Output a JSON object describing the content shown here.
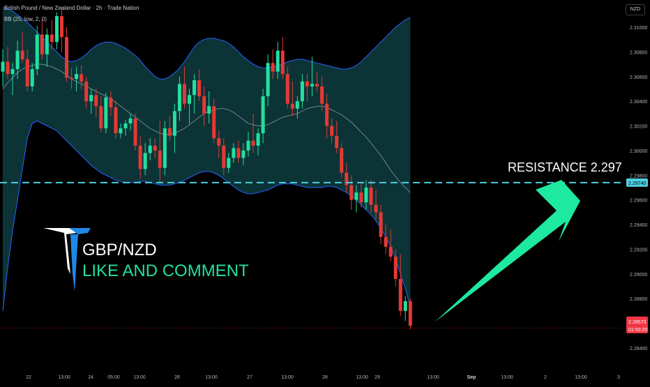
{
  "header": {
    "title": "British Pound / New Zealand Dollar · 2h · Trade Nation",
    "indicator": "BB (25, low, 2, 0)",
    "currency": "NZD"
  },
  "annotations": {
    "resistance_text": "RESISTANCE  2.297",
    "pair": "GBP/NZD",
    "cta": "LIKE AND COMMENT"
  },
  "price_tags": {
    "resistance": "2.29740",
    "last": "2.28573",
    "countdown": "01:50:20"
  },
  "colors": {
    "bull": "#26a69a",
    "bull_bright": "#22e0a0",
    "bear": "#e53935",
    "band_fill": "#0e3d40",
    "band_line": "#2962ff",
    "resistance_line": "#4dd0e1",
    "arrow": "#1de9a0",
    "logo": "#1e88e5",
    "price_line": "#b71c1c"
  },
  "chart_data": {
    "type": "candlestick",
    "symbol": "GBP/NZD",
    "timeframe": "2h",
    "indicator": "BB (25, low, 2, 0)",
    "y_axis": {
      "ticks": [
        "2.31000",
        "2.30800",
        "2.30600",
        "2.30400",
        "2.30200",
        "2.30000",
        "2.29800",
        "2.29600",
        "2.29400",
        "2.29200",
        "2.29000",
        "2.28800",
        "2.28600",
        "2.28400"
      ],
      "range": [
        2.2833,
        2.3118
      ]
    },
    "x_axis": {
      "ticks": [
        "22",
        "13:00",
        "24",
        "05:00",
        "13:00",
        "26",
        "13:00",
        "27",
        "13:00",
        "28",
        "13:00",
        "29",
        "13:00",
        "Sep",
        "13:00",
        "2",
        "13:00",
        "3"
      ]
    },
    "resistance": 2.2974,
    "last_price": 2.28573,
    "candles": [
      {
        "o": 2.3064,
        "h": 2.3082,
        "l": 2.3052,
        "c": 2.3072
      },
      {
        "o": 2.3072,
        "h": 2.3084,
        "l": 2.3058,
        "c": 2.3062
      },
      {
        "o": 2.3062,
        "h": 2.3071,
        "l": 2.3045,
        "c": 2.3066
      },
      {
        "o": 2.3066,
        "h": 2.3089,
        "l": 2.3058,
        "c": 2.3081
      },
      {
        "o": 2.3081,
        "h": 2.3096,
        "l": 2.3071,
        "c": 2.3074
      },
      {
        "o": 2.3074,
        "h": 2.3082,
        "l": 2.3048,
        "c": 2.3052
      },
      {
        "o": 2.3052,
        "h": 2.3071,
        "l": 2.3048,
        "c": 2.3066
      },
      {
        "o": 2.3066,
        "h": 2.3101,
        "l": 2.3061,
        "c": 2.3094
      },
      {
        "o": 2.3094,
        "h": 2.3106,
        "l": 2.3074,
        "c": 2.3078
      },
      {
        "o": 2.3078,
        "h": 2.3099,
        "l": 2.3068,
        "c": 2.3094
      },
      {
        "o": 2.3094,
        "h": 2.3106,
        "l": 2.3082,
        "c": 2.3088
      },
      {
        "o": 2.3088,
        "h": 2.3112,
        "l": 2.3082,
        "c": 2.3109
      },
      {
        "o": 2.3109,
        "h": 2.3116,
        "l": 2.308,
        "c": 2.3092
      },
      {
        "o": 2.3092,
        "h": 2.31,
        "l": 2.3056,
        "c": 2.3059
      },
      {
        "o": 2.3059,
        "h": 2.3067,
        "l": 2.305,
        "c": 2.3058
      },
      {
        "o": 2.3058,
        "h": 2.3068,
        "l": 2.3048,
        "c": 2.3062
      },
      {
        "o": 2.3062,
        "h": 2.3069,
        "l": 2.305,
        "c": 2.3056
      },
      {
        "o": 2.3056,
        "h": 2.306,
        "l": 2.3034,
        "c": 2.304
      },
      {
        "o": 2.304,
        "h": 2.305,
        "l": 2.303,
        "c": 2.3045
      },
      {
        "o": 2.3045,
        "h": 2.305,
        "l": 2.3027,
        "c": 2.3036
      },
      {
        "o": 2.3036,
        "h": 2.3044,
        "l": 2.3015,
        "c": 2.3018
      },
      {
        "o": 2.3018,
        "h": 2.3047,
        "l": 2.3014,
        "c": 2.3043
      },
      {
        "o": 2.3043,
        "h": 2.3048,
        "l": 2.3028,
        "c": 2.3035
      },
      {
        "o": 2.3035,
        "h": 2.304,
        "l": 2.301,
        "c": 2.3014
      },
      {
        "o": 2.3014,
        "h": 2.3022,
        "l": 2.301,
        "c": 2.3018
      },
      {
        "o": 2.3018,
        "h": 2.3025,
        "l": 2.3012,
        "c": 2.3022
      },
      {
        "o": 2.3022,
        "h": 2.303,
        "l": 2.3016,
        "c": 2.3026
      },
      {
        "o": 2.3026,
        "h": 2.303,
        "l": 2.3,
        "c": 2.3004
      },
      {
        "o": 2.3004,
        "h": 2.3012,
        "l": 2.2977,
        "c": 2.2985
      },
      {
        "o": 2.2985,
        "h": 2.3006,
        "l": 2.298,
        "c": 2.2998
      },
      {
        "o": 2.2998,
        "h": 2.301,
        "l": 2.2992,
        "c": 2.3004
      },
      {
        "o": 2.3004,
        "h": 2.301,
        "l": 2.2994,
        "c": 2.3
      },
      {
        "o": 2.3,
        "h": 2.3024,
        "l": 2.2974,
        "c": 2.2986
      },
      {
        "o": 2.2986,
        "h": 2.3024,
        "l": 2.298,
        "c": 2.3018
      },
      {
        "o": 2.3018,
        "h": 2.3028,
        "l": 2.3008,
        "c": 2.3012
      },
      {
        "o": 2.3012,
        "h": 2.3038,
        "l": 2.2998,
        "c": 2.3032
      },
      {
        "o": 2.3032,
        "h": 2.306,
        "l": 2.3024,
        "c": 2.3054
      },
      {
        "o": 2.3054,
        "h": 2.3068,
        "l": 2.3034,
        "c": 2.3038
      },
      {
        "o": 2.3038,
        "h": 2.305,
        "l": 2.3022,
        "c": 2.3045
      },
      {
        "o": 2.3045,
        "h": 2.3062,
        "l": 2.303,
        "c": 2.3057
      },
      {
        "o": 2.3057,
        "h": 2.3066,
        "l": 2.304,
        "c": 2.3044
      },
      {
        "o": 2.3044,
        "h": 2.3052,
        "l": 2.302,
        "c": 2.303
      },
      {
        "o": 2.303,
        "h": 2.3048,
        "l": 2.3022,
        "c": 2.3036
      },
      {
        "o": 2.3036,
        "h": 2.3042,
        "l": 2.3006,
        "c": 2.301
      },
      {
        "o": 2.301,
        "h": 2.3016,
        "l": 2.2994,
        "c": 2.3004
      },
      {
        "o": 2.3004,
        "h": 2.301,
        "l": 2.298,
        "c": 2.2986
      },
      {
        "o": 2.2986,
        "h": 2.2998,
        "l": 2.2982,
        "c": 2.2994
      },
      {
        "o": 2.2994,
        "h": 2.3006,
        "l": 2.299,
        "c": 2.3002
      },
      {
        "o": 2.3002,
        "h": 2.3008,
        "l": 2.299,
        "c": 2.2994
      },
      {
        "o": 2.2994,
        "h": 2.3006,
        "l": 2.2988,
        "c": 2.3
      },
      {
        "o": 2.3,
        "h": 2.3015,
        "l": 2.2995,
        "c": 2.3008
      },
      {
        "o": 2.3008,
        "h": 2.303,
        "l": 2.2998,
        "c": 2.3004
      },
      {
        "o": 2.3004,
        "h": 2.3018,
        "l": 2.2996,
        "c": 2.3014
      },
      {
        "o": 2.3014,
        "h": 2.305,
        "l": 2.3006,
        "c": 2.3044
      },
      {
        "o": 2.3044,
        "h": 2.3078,
        "l": 2.3036,
        "c": 2.3071
      },
      {
        "o": 2.3071,
        "h": 2.3082,
        "l": 2.3058,
        "c": 2.3064
      },
      {
        "o": 2.3064,
        "h": 2.3088,
        "l": 2.3058,
        "c": 2.3081
      },
      {
        "o": 2.3081,
        "h": 2.3092,
        "l": 2.3058,
        "c": 2.3062
      },
      {
        "o": 2.3062,
        "h": 2.3068,
        "l": 2.3034,
        "c": 2.3038
      },
      {
        "o": 2.3038,
        "h": 2.3056,
        "l": 2.3028,
        "c": 2.3034
      },
      {
        "o": 2.3034,
        "h": 2.3044,
        "l": 2.3026,
        "c": 2.304
      },
      {
        "o": 2.304,
        "h": 2.3062,
        "l": 2.3034,
        "c": 2.3056
      },
      {
        "o": 2.3056,
        "h": 2.3062,
        "l": 2.304,
        "c": 2.3052
      },
      {
        "o": 2.3052,
        "h": 2.3076,
        "l": 2.3044,
        "c": 2.3054
      },
      {
        "o": 2.3054,
        "h": 2.3064,
        "l": 2.3048,
        "c": 2.3052
      },
      {
        "o": 2.3052,
        "h": 2.306,
        "l": 2.3032,
        "c": 2.3038
      },
      {
        "o": 2.3038,
        "h": 2.3046,
        "l": 2.301,
        "c": 2.302
      },
      {
        "o": 2.302,
        "h": 2.3026,
        "l": 2.3006,
        "c": 2.3012
      },
      {
        "o": 2.3012,
        "h": 2.3024,
        "l": 2.2998,
        "c": 2.3002
      },
      {
        "o": 2.3002,
        "h": 2.3006,
        "l": 2.2978,
        "c": 2.2982
      },
      {
        "o": 2.2982,
        "h": 2.299,
        "l": 2.2966,
        "c": 2.2972
      },
      {
        "o": 2.2972,
        "h": 2.298,
        "l": 2.2952,
        "c": 2.296
      },
      {
        "o": 2.296,
        "h": 2.2972,
        "l": 2.295,
        "c": 2.2966
      },
      {
        "o": 2.2966,
        "h": 2.2974,
        "l": 2.2954,
        "c": 2.2958
      },
      {
        "o": 2.2958,
        "h": 2.2976,
        "l": 2.2952,
        "c": 2.297
      },
      {
        "o": 2.297,
        "h": 2.2976,
        "l": 2.295,
        "c": 2.2956
      },
      {
        "o": 2.2956,
        "h": 2.2968,
        "l": 2.2944,
        "c": 2.295
      },
      {
        "o": 2.295,
        "h": 2.2956,
        "l": 2.2924,
        "c": 2.293
      },
      {
        "o": 2.293,
        "h": 2.294,
        "l": 2.2916,
        "c": 2.2922
      },
      {
        "o": 2.2922,
        "h": 2.2936,
        "l": 2.291,
        "c": 2.2914
      },
      {
        "o": 2.2914,
        "h": 2.292,
        "l": 2.289,
        "c": 2.2896
      },
      {
        "o": 2.2896,
        "h": 2.2916,
        "l": 2.2866,
        "c": 2.287
      },
      {
        "o": 2.287,
        "h": 2.2882,
        "l": 2.2862,
        "c": 2.2878
      },
      {
        "o": 2.2878,
        "h": 2.288,
        "l": 2.2855,
        "c": 2.2858
      }
    ],
    "bollinger": {
      "upper": [
        2.3116,
        2.3115,
        2.3113,
        2.311,
        2.3107,
        2.3104,
        2.31,
        2.3096,
        2.3092,
        2.3088,
        2.3084,
        2.308,
        2.3076,
        2.3073,
        2.3072,
        2.3073,
        2.3075,
        2.3078,
        2.3082,
        2.3085,
        2.3087,
        2.3088,
        2.3088,
        2.3087,
        2.3085,
        2.3083,
        2.308,
        2.3077,
        2.3073,
        2.3068,
        2.3064,
        2.306,
        2.3058,
        2.3058,
        2.306,
        2.3063,
        2.3067,
        2.3072,
        2.3078,
        2.3084,
        2.3088,
        2.309,
        2.3091,
        2.3091,
        2.309,
        2.3089,
        2.3087,
        2.3084,
        2.308,
        2.3076,
        2.3073,
        2.307,
        2.3068,
        2.3067,
        2.3067,
        2.3068,
        2.3069,
        2.307,
        2.3072,
        2.3073,
        2.3074,
        2.3074,
        2.3073,
        2.3072,
        2.3071,
        2.307,
        2.3069,
        2.3068,
        2.3067,
        2.3066,
        2.3066,
        2.3067,
        2.3069,
        2.3072,
        2.3076,
        2.308,
        2.3084,
        2.3088,
        2.3092,
        2.3096,
        2.31,
        2.3103,
        2.3106,
        2.3108
      ],
      "middle": [
        2.305,
        2.3055,
        2.3059,
        2.3063,
        2.3066,
        2.3068,
        2.3069,
        2.307,
        2.307,
        2.3069,
        2.3068,
        2.3066,
        2.3064,
        2.3061,
        2.3058,
        2.3056,
        2.3054,
        2.3052,
        2.305,
        2.3048,
        2.3046,
        2.3044,
        2.3042,
        2.3039,
        2.3036,
        2.3033,
        2.303,
        2.3027,
        2.3024,
        2.3021,
        2.3018,
        2.3016,
        2.3014,
        2.3013,
        2.3013,
        2.3014,
        2.3016,
        2.3018,
        2.3021,
        2.3024,
        2.3027,
        2.303,
        2.3032,
        2.3033,
        2.3034,
        2.3034,
        2.3033,
        2.3031,
        2.3028,
        2.3025,
        2.3022,
        2.3021,
        2.302,
        2.302,
        2.3021,
        2.3023,
        2.3025,
        2.3027,
        2.3028,
        2.3029,
        2.303,
        2.3032,
        2.3034,
        2.3035,
        2.3036,
        2.3036,
        2.3035,
        2.3033,
        2.3031,
        2.3029,
        2.3026,
        2.3023,
        2.3019,
        2.3015,
        2.3011,
        2.3006,
        2.3001,
        2.2996,
        2.299,
        2.2984,
        2.2979,
        2.2974,
        2.297,
        2.2966
      ],
      "lower": [
        2.287,
        2.2905,
        2.2935,
        2.296,
        2.2985,
        2.301,
        2.3022,
        2.3024,
        2.3022,
        2.302,
        2.3018,
        2.3016,
        2.3012,
        2.3008,
        2.3004,
        2.3,
        2.2996,
        2.2992,
        2.2988,
        2.2985,
        2.2982,
        2.298,
        2.2978,
        2.2976,
        2.2975,
        2.2974,
        2.2974,
        2.2974,
        2.2975,
        2.2975,
        2.2974,
        2.2973,
        2.2972,
        2.2972,
        2.2972,
        2.2973,
        2.2974,
        2.2976,
        2.2978,
        2.298,
        2.2982,
        2.2983,
        2.2983,
        2.2982,
        2.298,
        2.2977,
        2.2974,
        2.2971,
        2.2968,
        2.2966,
        2.2965,
        2.2965,
        2.2966,
        2.2967,
        2.2968,
        2.297,
        2.2972,
        2.2973,
        2.2973,
        2.2973,
        2.2972,
        2.2971,
        2.297,
        2.297,
        2.297,
        2.297,
        2.2971,
        2.2971,
        2.297,
        2.2968,
        2.2966,
        2.2963,
        2.296,
        2.2956,
        2.2952,
        2.2948,
        2.2943,
        2.2937,
        2.293,
        2.2922,
        2.2912,
        2.29,
        2.2888,
        2.2873
      ]
    }
  }
}
